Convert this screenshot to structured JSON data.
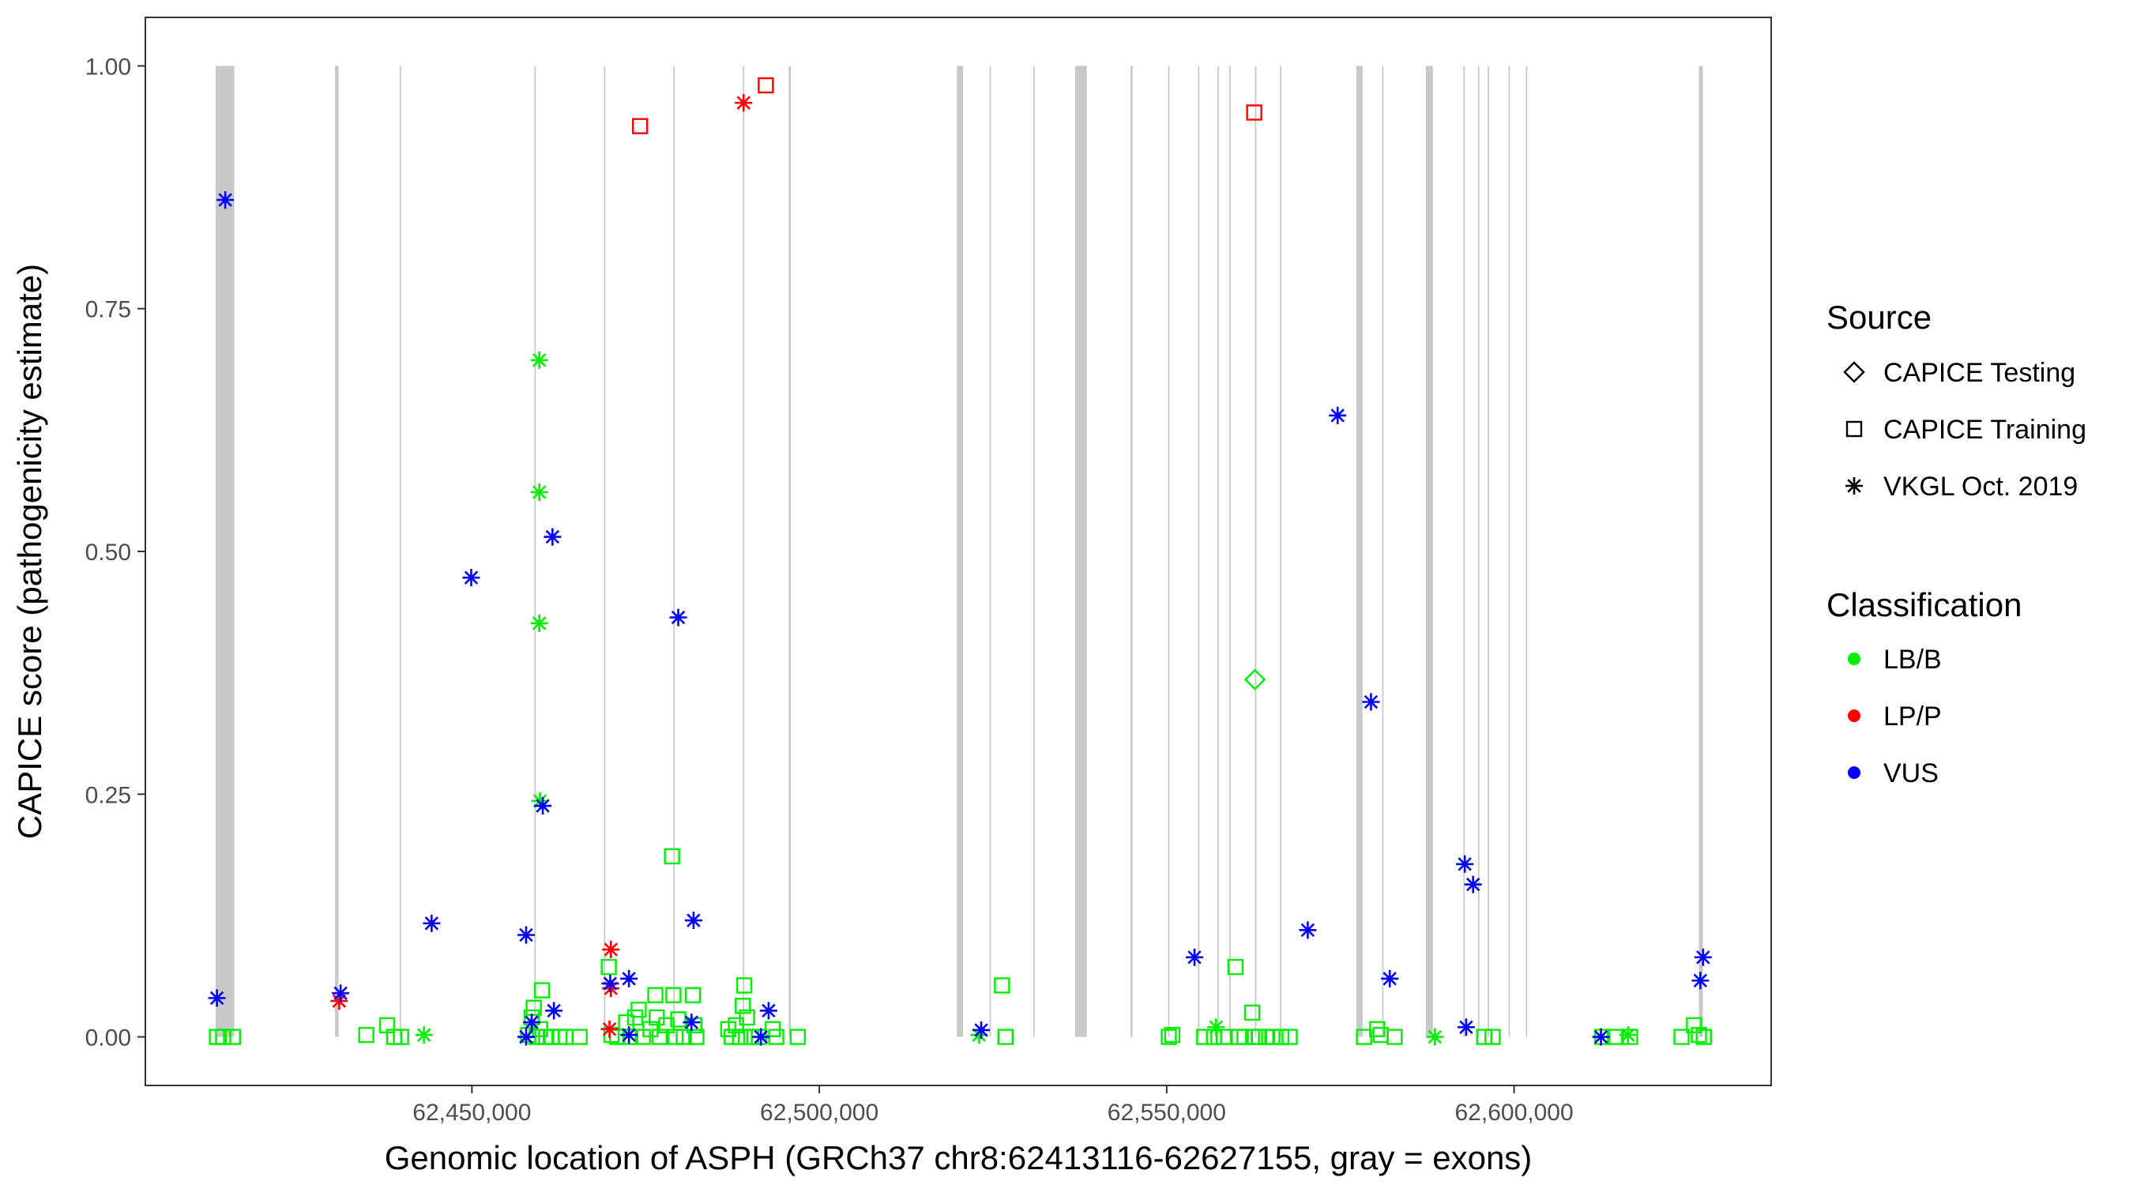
{
  "chart_data": {
    "type": "scatter",
    "xlabel": "Genomic location of ASPH (GRCh37 chr8:62413116-62627155, gray = exons)",
    "ylabel": "CAPICE score (pathogenicity estimate)",
    "xlim": [
      62403000,
      62637000
    ],
    "ylim": [
      -0.05,
      1.05
    ],
    "x_ticks": [
      62450000,
      62500000,
      62550000,
      62600000
    ],
    "x_tick_labels": [
      "62,450,000",
      "62,500,000",
      "62,550,000",
      "62,600,000"
    ],
    "y_ticks": [
      0,
      0.25,
      0.5,
      0.75,
      1
    ],
    "y_tick_labels": [
      "0.00",
      "0.25",
      "0.50",
      "0.75",
      "1.00"
    ],
    "grid": false,
    "exons": [
      [
        62413116,
        62415800
      ],
      [
        62430300,
        62430800
      ],
      [
        62439600,
        62439800
      ],
      [
        62459000,
        62459200
      ],
      [
        62469000,
        62469200
      ],
      [
        62479000,
        62479200
      ],
      [
        62489000,
        62489200
      ],
      [
        62495600,
        62495900
      ],
      [
        62519800,
        62520700
      ],
      [
        62524500,
        62524700
      ],
      [
        62530800,
        62531000
      ],
      [
        62536800,
        62538500
      ],
      [
        62544800,
        62545100
      ],
      [
        62550200,
        62550400
      ],
      [
        62554500,
        62554700
      ],
      [
        62557300,
        62557500
      ],
      [
        62559000,
        62559200
      ],
      [
        62562700,
        62562900
      ],
      [
        62566300,
        62566500
      ],
      [
        62577300,
        62578200
      ],
      [
        62581000,
        62581200
      ],
      [
        62587300,
        62588300
      ],
      [
        62592700,
        62592900
      ],
      [
        62594800,
        62595000
      ],
      [
        62596200,
        62596400
      ],
      [
        62599200,
        62599400
      ],
      [
        62601700,
        62601900
      ],
      [
        62626600,
        62627155
      ]
    ],
    "legend": {
      "position": "right",
      "source_title": "Source",
      "source_entries": [
        {
          "label": "CAPICE Testing",
          "shape": "diamond"
        },
        {
          "label": "CAPICE Training",
          "shape": "square"
        },
        {
          "label": "VKGL Oct. 2019",
          "shape": "asterisk"
        }
      ],
      "class_title": "Classification",
      "class_entries": [
        {
          "label": "LB/B",
          "color": "#00ee00"
        },
        {
          "label": "LP/P",
          "color": "#ff0000"
        },
        {
          "label": "VUS",
          "color": "#0000ff"
        }
      ]
    },
    "series": [
      {
        "source": "CAPICE Training",
        "classification": "LB/B",
        "shape": "square",
        "color": "#00ee00",
        "points": [
          [
            62413300,
            0
          ],
          [
            62414200,
            0
          ],
          [
            62415600,
            0
          ],
          [
            62434800,
            0.002
          ],
          [
            62437800,
            0.012
          ],
          [
            62438800,
            0
          ],
          [
            62439800,
            0
          ],
          [
            62458100,
            0.002
          ],
          [
            62458600,
            0.02
          ],
          [
            62458900,
            0.03
          ],
          [
            62459300,
            0
          ],
          [
            62459800,
            0.008
          ],
          [
            62460100,
            0.048
          ],
          [
            62460700,
            0
          ],
          [
            62461500,
            0
          ],
          [
            62462600,
            0
          ],
          [
            62463500,
            0
          ],
          [
            62465500,
            0
          ],
          [
            62469700,
            0.072
          ],
          [
            62470100,
            0.002
          ],
          [
            62470900,
            0
          ],
          [
            62472200,
            0.015
          ],
          [
            62472800,
            0
          ],
          [
            62473500,
            0.02
          ],
          [
            62474000,
            0.028
          ],
          [
            62474600,
            0
          ],
          [
            62475700,
            0.008
          ],
          [
            62476400,
            0.043
          ],
          [
            62476600,
            0.02
          ],
          [
            62477000,
            0
          ],
          [
            62478000,
            0.012
          ],
          [
            62478800,
            0.186
          ],
          [
            62479000,
            0.043
          ],
          [
            62479300,
            0
          ],
          [
            62479700,
            0.018
          ],
          [
            62480500,
            0
          ],
          [
            62481800,
            0.043
          ],
          [
            62482000,
            0.012
          ],
          [
            62482300,
            0
          ],
          [
            62486900,
            0.008
          ],
          [
            62487400,
            0
          ],
          [
            62488000,
            0.012
          ],
          [
            62488600,
            0
          ],
          [
            62489000,
            0.032
          ],
          [
            62489200,
            0.053
          ],
          [
            62489600,
            0.02
          ],
          [
            62490200,
            0
          ],
          [
            62491300,
            0
          ],
          [
            62493300,
            0.008
          ],
          [
            62493800,
            0
          ],
          [
            62496900,
            0
          ],
          [
            62526300,
            0.053
          ],
          [
            62526800,
            0
          ],
          [
            62550300,
            0
          ],
          [
            62550800,
            0.002
          ],
          [
            62555400,
            0
          ],
          [
            62556800,
            0
          ],
          [
            62558200,
            0
          ],
          [
            62559900,
            0.072
          ],
          [
            62560400,
            0
          ],
          [
            62561200,
            0
          ],
          [
            62562300,
            0.025
          ],
          [
            62562700,
            0
          ],
          [
            62563300,
            0
          ],
          [
            62564300,
            0
          ],
          [
            62565200,
            0
          ],
          [
            62566500,
            0
          ],
          [
            62567700,
            0
          ],
          [
            62578400,
            0
          ],
          [
            62580300,
            0.008
          ],
          [
            62580800,
            0.002
          ],
          [
            62582800,
            0
          ],
          [
            62595700,
            0
          ],
          [
            62596900,
            0
          ],
          [
            62612700,
            0
          ],
          [
            62614500,
            0
          ],
          [
            62616700,
            0
          ],
          [
            62624100,
            0
          ],
          [
            62625900,
            0.012
          ],
          [
            62626600,
            0.002
          ],
          [
            62627300,
            0
          ]
        ]
      },
      {
        "source": "CAPICE Training",
        "classification": "LP/P",
        "shape": "square",
        "color": "#ff0000",
        "points": [
          [
            62474200,
            0.938
          ],
          [
            62492300,
            0.98
          ],
          [
            62562600,
            0.952
          ]
        ]
      },
      {
        "source": "CAPICE Testing",
        "classification": "LB/B",
        "shape": "diamond",
        "color": "#00ee00",
        "points": [
          [
            62562700,
            0.368
          ]
        ]
      },
      {
        "source": "VKGL Oct. 2019",
        "classification": "LB/B",
        "shape": "asterisk",
        "color": "#00ee00",
        "points": [
          [
            62443100,
            0.002
          ],
          [
            62459700,
            0.697
          ],
          [
            62459700,
            0.561
          ],
          [
            62459700,
            0.426
          ],
          [
            62459800,
            0.243
          ],
          [
            62523000,
            0.002
          ],
          [
            62557100,
            0.01
          ],
          [
            62588600,
            0
          ],
          [
            62616400,
            0.002
          ]
        ]
      },
      {
        "source": "VKGL Oct. 2019",
        "classification": "LP/P",
        "shape": "asterisk",
        "color": "#ff0000",
        "points": [
          [
            62430900,
            0.037
          ],
          [
            62470000,
            0.09
          ],
          [
            62470000,
            0.05
          ],
          [
            62469800,
            0.008
          ],
          [
            62489100,
            0.962
          ]
        ]
      },
      {
        "source": "VKGL Oct. 2019",
        "classification": "VUS",
        "shape": "asterisk",
        "color": "#0000ff",
        "points": [
          [
            62413300,
            0.04
          ],
          [
            62414500,
            0.862
          ],
          [
            62431100,
            0.045
          ],
          [
            62444200,
            0.117
          ],
          [
            62449900,
            0.473
          ],
          [
            62457800,
            0.105
          ],
          [
            62457800,
            0
          ],
          [
            62458600,
            0.015
          ],
          [
            62460200,
            0.238
          ],
          [
            62461600,
            0.515
          ],
          [
            62461800,
            0.027
          ],
          [
            62469900,
            0.055
          ],
          [
            62472600,
            0.06
          ],
          [
            62472600,
            0.002
          ],
          [
            62479700,
            0.432
          ],
          [
            62481600,
            0.015
          ],
          [
            62481900,
            0.12
          ],
          [
            62491600,
            0
          ],
          [
            62492700,
            0.027
          ],
          [
            62523300,
            0.007
          ],
          [
            62554000,
            0.082
          ],
          [
            62570300,
            0.11
          ],
          [
            62574600,
            0.64
          ],
          [
            62579400,
            0.345
          ],
          [
            62582100,
            0.06
          ],
          [
            62592900,
            0.178
          ],
          [
            62593100,
            0.01
          ],
          [
            62594100,
            0.157
          ],
          [
            62612500,
            0
          ],
          [
            62626800,
            0.058
          ],
          [
            62627200,
            0.082
          ]
        ]
      }
    ]
  }
}
